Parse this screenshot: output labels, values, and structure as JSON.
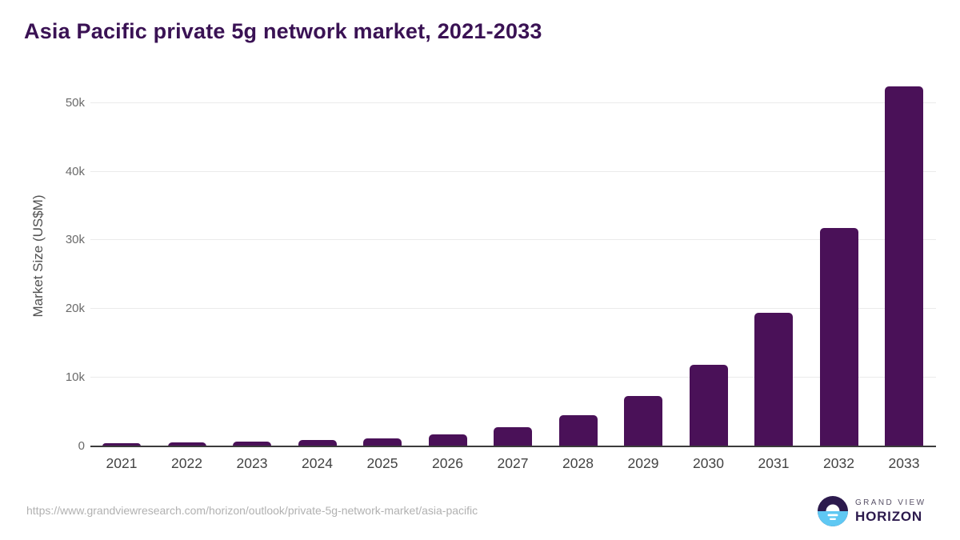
{
  "header": {
    "title": "Asia Pacific private 5g network market, 2021-2033"
  },
  "chart_data": {
    "type": "bar",
    "title": "Asia Pacific private 5g network market, 2021-2033",
    "xlabel": "",
    "ylabel": "Market Size (US$M)",
    "categories": [
      "2021",
      "2022",
      "2023",
      "2024",
      "2025",
      "2026",
      "2027",
      "2028",
      "2029",
      "2030",
      "2031",
      "2032",
      "2033"
    ],
    "values": [
      450,
      600,
      750,
      900,
      1200,
      1700,
      2800,
      4500,
      7300,
      11900,
      19500,
      31800,
      52400
    ],
    "ylim": [
      0,
      53000
    ],
    "yticks": [
      {
        "value": 0,
        "label": "0"
      },
      {
        "value": 10000,
        "label": "10k"
      },
      {
        "value": 20000,
        "label": "20k"
      },
      {
        "value": 30000,
        "label": "30k"
      },
      {
        "value": 40000,
        "label": "40k"
      },
      {
        "value": 50000,
        "label": "50k"
      }
    ],
    "grid": true,
    "legend": false,
    "bar_color": "#4a1158"
  },
  "footer": {
    "source_url": "https://www.grandviewresearch.com/horizon/outlook/private-5g-network-market/asia-pacific",
    "logo": {
      "line1": "GRAND VIEW",
      "line2": "HORIZON",
      "mark": "horizon-sun-logo-icon"
    }
  },
  "colors": {
    "bar": "#4a1158",
    "heading": "#3a1254",
    "grid": "#ebebeb",
    "axis_line": "#3b3b3b",
    "tick_text": "#6a6a6a",
    "x_tick_text": "#434343",
    "axis_title_text": "#505050",
    "url_text": "#b1b1b1",
    "logo_dark": "#2c1a4d",
    "logo_blue": "#5fc8f3",
    "logo_gray": "#575066"
  }
}
